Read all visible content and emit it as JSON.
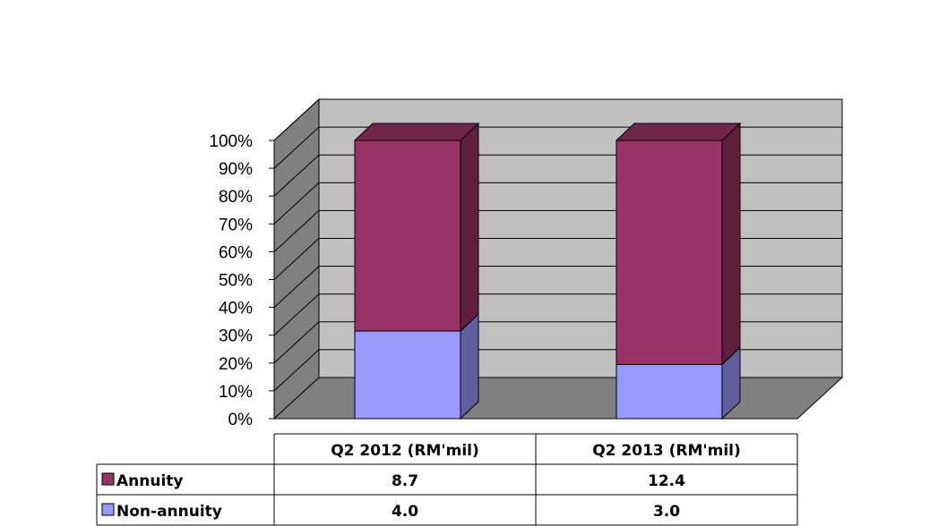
{
  "chart_data": {
    "type": "bar",
    "stacked": true,
    "three_d": true,
    "percent_stacked": true,
    "title": "",
    "xlabel": "",
    "ylabel": "",
    "ylim": [
      0,
      100
    ],
    "y_ticks": [
      "0%",
      "10%",
      "20%",
      "30%",
      "40%",
      "50%",
      "60%",
      "70%",
      "80%",
      "90%",
      "100%"
    ],
    "grid": true,
    "legend": "data-table",
    "categories": [
      "Q2 2012 (RM'mil)",
      "Q2 2013 (RM'mil)"
    ],
    "series": [
      {
        "name": "Annuity",
        "values": [
          8.7,
          12.4
        ],
        "labels": [
          "8.7",
          "12.4"
        ],
        "color": "#993366"
      },
      {
        "name": "Non-annuity",
        "values": [
          4.0,
          3.0
        ],
        "labels": [
          "4.0",
          "3.0"
        ],
        "color": "#9999ff"
      }
    ],
    "colors": {
      "wall": "#c0c0c0",
      "side_wall": "#808080",
      "floor": "#808080"
    }
  }
}
